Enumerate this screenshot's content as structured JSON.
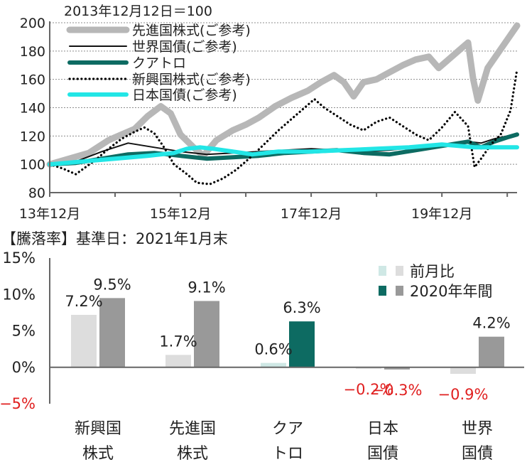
{
  "chart_data": [
    {
      "type": "line",
      "title": "2013年12月12日＝100",
      "ylim": [
        80,
        200
      ],
      "y_ticks": [
        80,
        100,
        120,
        140,
        160,
        180,
        200
      ],
      "x_ticks": [
        "13年12月",
        "15年12月",
        "17年12月",
        "19年12月"
      ],
      "x_tick_times": [
        0,
        2,
        4,
        6
      ],
      "xlim": [
        0,
        7.15
      ],
      "grid": true,
      "legend_position": "top-left",
      "series": [
        {
          "name": "先進国株式(ご参考)",
          "color": "#b7b7b7",
          "style": "thick",
          "points": [
            [
              0,
              100
            ],
            [
              0.3,
              104
            ],
            [
              0.6,
              108
            ],
            [
              0.9,
              117
            ],
            [
              1.1,
              121
            ],
            [
              1.3,
              125
            ],
            [
              1.5,
              134
            ],
            [
              1.7,
              141
            ],
            [
              1.85,
              136
            ],
            [
              2.0,
              121
            ],
            [
              2.2,
              112
            ],
            [
              2.35,
              106
            ],
            [
              2.55,
              117
            ],
            [
              2.8,
              124
            ],
            [
              3.0,
              128
            ],
            [
              3.2,
              133
            ],
            [
              3.45,
              141
            ],
            [
              3.7,
              147
            ],
            [
              3.95,
              152
            ],
            [
              4.15,
              158
            ],
            [
              4.35,
              163
            ],
            [
              4.5,
              158
            ],
            [
              4.65,
              148
            ],
            [
              4.8,
              158
            ],
            [
              5.0,
              160
            ],
            [
              5.2,
              165
            ],
            [
              5.4,
              170
            ],
            [
              5.6,
              174
            ],
            [
              5.8,
              176
            ],
            [
              5.95,
              168
            ],
            [
              6.05,
              172
            ],
            [
              6.25,
              180
            ],
            [
              6.4,
              186
            ],
            [
              6.48,
              160
            ],
            [
              6.55,
              145
            ],
            [
              6.7,
              168
            ],
            [
              6.85,
              178
            ],
            [
              7.0,
              188
            ],
            [
              7.15,
              198
            ]
          ]
        },
        {
          "name": "世界国債(ご参考)",
          "color": "#111111",
          "style": "thin",
          "points": [
            [
              0,
              100
            ],
            [
              0.4,
              102
            ],
            [
              0.8,
              109
            ],
            [
              1.2,
              115
            ],
            [
              1.6,
              112
            ],
            [
              2.0,
              109
            ],
            [
              2.4,
              107
            ],
            [
              2.8,
              108
            ],
            [
              3.2,
              109
            ],
            [
              3.6,
              110
            ],
            [
              4.0,
              111
            ],
            [
              4.4,
              110
            ],
            [
              4.8,
              109
            ],
            [
              5.2,
              110
            ],
            [
              5.6,
              112
            ],
            [
              6.0,
              114
            ],
            [
              6.4,
              116
            ],
            [
              6.6,
              115
            ],
            [
              6.8,
              118
            ],
            [
              7.0,
              120
            ],
            [
              7.15,
              121
            ]
          ]
        },
        {
          "name": "クアトロ",
          "color": "#0d6b62",
          "style": "medium",
          "points": [
            [
              0,
              100
            ],
            [
              0.4,
              101
            ],
            [
              0.8,
              104
            ],
            [
              1.2,
              107
            ],
            [
              1.6,
              108
            ],
            [
              2.0,
              106
            ],
            [
              2.4,
              104
            ],
            [
              2.8,
              105
            ],
            [
              3.2,
              106
            ],
            [
              3.6,
              108
            ],
            [
              4.0,
              109
            ],
            [
              4.4,
              110
            ],
            [
              4.8,
              108
            ],
            [
              5.2,
              107
            ],
            [
              5.6,
              110
            ],
            [
              6.0,
              113
            ],
            [
              6.4,
              116
            ],
            [
              6.6,
              112
            ],
            [
              6.8,
              116
            ],
            [
              7.0,
              119
            ],
            [
              7.15,
              121
            ]
          ]
        },
        {
          "name": "新興国株式(ご参考)",
          "color": "#000000",
          "style": "dotted",
          "points": [
            [
              0,
              100
            ],
            [
              0.2,
              97
            ],
            [
              0.4,
              93
            ],
            [
              0.7,
              103
            ],
            [
              0.9,
              111
            ],
            [
              1.1,
              118
            ],
            [
              1.3,
              123
            ],
            [
              1.45,
              126
            ],
            [
              1.6,
              122
            ],
            [
              1.75,
              112
            ],
            [
              1.9,
              100
            ],
            [
              2.1,
              93
            ],
            [
              2.25,
              87
            ],
            [
              2.45,
              86
            ],
            [
              2.65,
              90
            ],
            [
              2.85,
              96
            ],
            [
              3.05,
              104
            ],
            [
              3.3,
              115
            ],
            [
              3.5,
              124
            ],
            [
              3.7,
              132
            ],
            [
              3.9,
              140
            ],
            [
              4.05,
              146
            ],
            [
              4.2,
              140
            ],
            [
              4.4,
              134
            ],
            [
              4.6,
              128
            ],
            [
              4.8,
              124
            ],
            [
              5.0,
              130
            ],
            [
              5.2,
              133
            ],
            [
              5.4,
              127
            ],
            [
              5.6,
              121
            ],
            [
              5.8,
              117
            ],
            [
              6.0,
              126
            ],
            [
              6.2,
              137
            ],
            [
              6.4,
              127
            ],
            [
              6.5,
              98
            ],
            [
              6.6,
              104
            ],
            [
              6.75,
              114
            ],
            [
              6.9,
              121
            ],
            [
              7.05,
              138
            ],
            [
              7.15,
              167
            ]
          ]
        },
        {
          "name": "日本国債(ご参考)",
          "color": "#22e6e6",
          "style": "medium",
          "points": [
            [
              0,
              100
            ],
            [
              0.5,
              102
            ],
            [
              1.0,
              104
            ],
            [
              1.5,
              106
            ],
            [
              1.9,
              108
            ],
            [
              2.1,
              111
            ],
            [
              2.3,
              112
            ],
            [
              2.5,
              111
            ],
            [
              2.8,
              109
            ],
            [
              3.1,
              107
            ],
            [
              3.5,
              109
            ],
            [
              4.0,
              109
            ],
            [
              4.5,
              110
            ],
            [
              5.0,
              111
            ],
            [
              5.5,
              112
            ],
            [
              6.0,
              114
            ],
            [
              6.5,
              112
            ],
            [
              7.0,
              112
            ],
            [
              7.15,
              112
            ]
          ]
        }
      ]
    },
    {
      "type": "bar",
      "title": "【騰落率】基準日：2021年1月末",
      "unit": "%",
      "ylim": [
        -5,
        15
      ],
      "y_ticks": [
        -5,
        0,
        5,
        10,
        15
      ],
      "y_tick_labels": [
        "−5%",
        "0%",
        "5%",
        "10%",
        "15%"
      ],
      "categories": [
        {
          "line1": "新興国",
          "line2": "株式"
        },
        {
          "line1": "先進国",
          "line2": "株式"
        },
        {
          "line1": "クア",
          "line2": "トロ"
        },
        {
          "line1": "日本",
          "line2": "国債"
        },
        {
          "line1": "世界",
          "line2": "国債"
        }
      ],
      "series": [
        {
          "name": "前月比",
          "values": [
            7.2,
            1.7,
            0.6,
            -0.2,
            -0.9
          ],
          "labels": [
            "7.2%",
            "1.7%",
            "0.6%",
            "−0.2%",
            "−0.9%"
          ],
          "color": "#dddddd",
          "highlight_color": "#cfe8e5"
        },
        {
          "name": "2020年年間",
          "values": [
            9.5,
            9.1,
            6.3,
            -0.3,
            4.2
          ],
          "labels": [
            "9.5%",
            "9.1%",
            "6.3%",
            "−0.3%",
            "4.2%"
          ],
          "color": "#999999",
          "highlight_color": "#0d6b62"
        }
      ],
      "highlight_category_index": 2,
      "negative_label_color": "#e02020",
      "legend_position": "top-right"
    }
  ]
}
